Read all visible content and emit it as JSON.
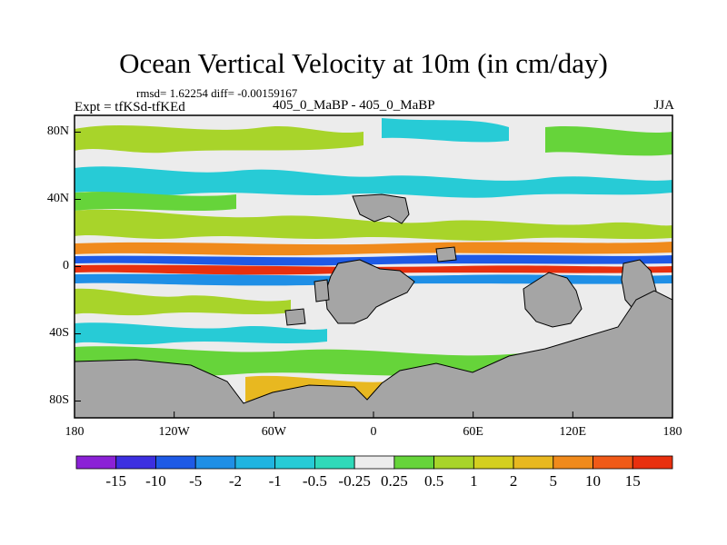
{
  "title": "Ocean Vertical Velocity at 10m (in cm/day)",
  "stats": "rmsd= 1.62254 diff= -0.00159167",
  "experiment": "Expt = tfKSd-tfKEd",
  "subtitle": "405_0_MaBP - 405_0_MaBP",
  "season": "JJA",
  "axes": {
    "y_ticks": [
      "80N",
      "40N",
      "0",
      "40S",
      "80S"
    ],
    "y_values": [
      80,
      40,
      0,
      -40,
      -80
    ],
    "x_ticks": [
      "180",
      "120W",
      "60W",
      "0",
      "60E",
      "120E",
      "180"
    ],
    "x_values": [
      -180,
      -120,
      -60,
      0,
      60,
      120,
      180
    ],
    "lat_range": [
      -90,
      90
    ],
    "lon_range": [
      -180,
      180
    ]
  },
  "colorbar": {
    "labels": [
      "-15",
      "-10",
      "-5",
      "-2",
      "-1",
      "-0.5",
      "-0.25",
      "0.25",
      "0.5",
      "1",
      "2",
      "5",
      "10",
      "15"
    ],
    "colors": [
      "#8b21d6",
      "#3c2fe0",
      "#1e5ae6",
      "#1f8fe6",
      "#20b4e0",
      "#27cbd6",
      "#2fd9b9",
      "#ececec",
      "#66d43a",
      "#a8d42a",
      "#d4cf20",
      "#e8b820",
      "#f08a1c",
      "#f05a18",
      "#e8300f"
    ]
  },
  "colors": {
    "land": "#a5a5a5",
    "background": "#ececec"
  }
}
